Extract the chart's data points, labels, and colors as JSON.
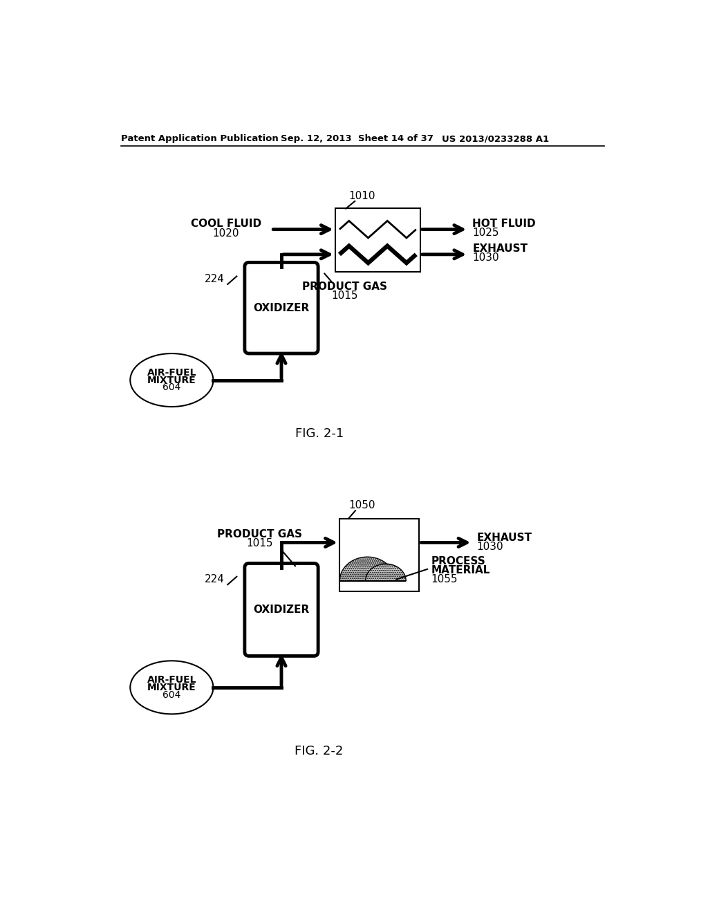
{
  "header_left": "Patent Application Publication",
  "header_mid": "Sep. 12, 2013  Sheet 14 of 37",
  "header_right": "US 2013/0233288 A1",
  "fig1_label": "FIG. 2-1",
  "fig2_label": "FIG. 2-2",
  "background": "#ffffff",
  "line_color": "#000000",
  "text_color": "#000000",
  "lw_thick": 3.5,
  "lw_thin": 1.5,
  "lw_arrow": 3.5
}
